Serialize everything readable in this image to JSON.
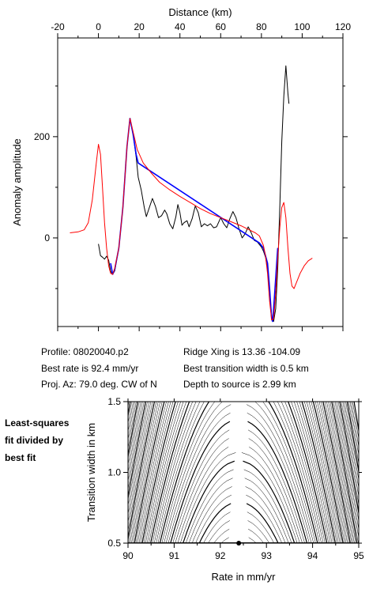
{
  "chart_data": [
    {
      "type": "line",
      "xlabel": "Distance (km)",
      "ylabel": "Anomaly amplitude",
      "xlim": [
        -20,
        120
      ],
      "ylim": [
        -175,
        395
      ],
      "xticks": [
        -20,
        0,
        20,
        40,
        60,
        80,
        100,
        120
      ],
      "yticks": [
        0,
        200
      ],
      "series": [
        {
          "color": "#000000",
          "points": [
            [
              0,
              -12
            ],
            [
              1,
              -35
            ],
            [
              2,
              -38
            ],
            [
              3,
              -42
            ],
            [
              4,
              -36
            ],
            [
              5,
              -44
            ],
            [
              6,
              -66
            ],
            [
              7,
              -72
            ],
            [
              8,
              -65
            ],
            [
              10,
              -20
            ],
            [
              12,
              60
            ],
            [
              14,
              180
            ],
            [
              15.5,
              236
            ],
            [
              17,
              205
            ],
            [
              18.5,
              160
            ],
            [
              19.5,
              120
            ],
            [
              21,
              95
            ],
            [
              22.5,
              60
            ],
            [
              23.5,
              42
            ],
            [
              25,
              60
            ],
            [
              26.5,
              78
            ],
            [
              28,
              62
            ],
            [
              29.5,
              40
            ],
            [
              31,
              44
            ],
            [
              32.5,
              55
            ],
            [
              33.5,
              48
            ],
            [
              35,
              28
            ],
            [
              36.5,
              18
            ],
            [
              38,
              42
            ],
            [
              39,
              66
            ],
            [
              40,
              50
            ],
            [
              41,
              25
            ],
            [
              42,
              30
            ],
            [
              43.5,
              34
            ],
            [
              44.5,
              22
            ],
            [
              46,
              38
            ],
            [
              47.5,
              63
            ],
            [
              49,
              50
            ],
            [
              50.5,
              22
            ],
            [
              52,
              28
            ],
            [
              53.5,
              24
            ],
            [
              55,
              28
            ],
            [
              56.5,
              20
            ],
            [
              58,
              22
            ],
            [
              60,
              40
            ],
            [
              61.5,
              28
            ],
            [
              63,
              20
            ],
            [
              64.5,
              38
            ],
            [
              66,
              52
            ],
            [
              67.5,
              40
            ],
            [
              69,
              18
            ],
            [
              70.5,
              0
            ],
            [
              72,
              8
            ],
            [
              73.5,
              22
            ],
            [
              75,
              10
            ],
            [
              76.5,
              -5
            ],
            [
              78,
              -8
            ],
            [
              80,
              -18
            ],
            [
              81,
              -26
            ],
            [
              82,
              -38
            ],
            [
              83,
              -62
            ],
            [
              84,
              -104
            ],
            [
              85,
              -155
            ],
            [
              86,
              -165
            ],
            [
              87,
              -140
            ],
            [
              88,
              -60
            ],
            [
              89,
              60
            ],
            [
              90,
              190
            ],
            [
              91,
              280
            ],
            [
              92,
              340
            ],
            [
              93,
              285
            ],
            [
              93.5,
              265
            ]
          ]
        },
        {
          "color": "#0000ff",
          "points": [
            [
              6,
              -50
            ],
            [
              7,
              -72
            ],
            [
              8,
              -62
            ],
            [
              10,
              -20
            ],
            [
              12,
              60
            ],
            [
              14,
              180
            ],
            [
              15.5,
              236
            ],
            [
              17,
              205
            ],
            [
              18.5,
              165
            ],
            [
              19.5,
              148
            ],
            [
              79,
              -10
            ],
            [
              81,
              -20
            ],
            [
              83,
              -50
            ],
            [
              84,
              -100
            ],
            [
              85,
              -160
            ],
            [
              85.5,
              -165
            ],
            [
              86,
              -140
            ],
            [
              87,
              -80
            ],
            [
              88,
              -20
            ]
          ]
        },
        {
          "color": "#ff0000",
          "points": [
            [
              -14,
              10
            ],
            [
              -10,
              12
            ],
            [
              -7,
              16
            ],
            [
              -5,
              30
            ],
            [
              -3,
              75
            ],
            [
              -1,
              150
            ],
            [
              0,
              185
            ],
            [
              1,
              165
            ],
            [
              2,
              100
            ],
            [
              3,
              30
            ],
            [
              4,
              -20
            ],
            [
              5,
              -55
            ],
            [
              6,
              -70
            ],
            [
              7,
              -72
            ],
            [
              8,
              -60
            ],
            [
              10,
              -20
            ],
            [
              12,
              60
            ],
            [
              14,
              180
            ],
            [
              15.5,
              236
            ],
            [
              17,
              210
            ],
            [
              19,
              175
            ],
            [
              22,
              148
            ],
            [
              26,
              128
            ],
            [
              30,
              110
            ],
            [
              35,
              95
            ],
            [
              40,
              82
            ],
            [
              45,
              70
            ],
            [
              50,
              58
            ],
            [
              55,
              48
            ],
            [
              60,
              40
            ],
            [
              65,
              32
            ],
            [
              70,
              24
            ],
            [
              74,
              16
            ],
            [
              77,
              10
            ],
            [
              79,
              4
            ],
            [
              81,
              -15
            ],
            [
              82,
              -35
            ],
            [
              83,
              -70
            ],
            [
              84,
              -125
            ],
            [
              85,
              -162
            ],
            [
              86,
              -160
            ],
            [
              87,
              -110
            ],
            [
              88,
              -40
            ],
            [
              89,
              20
            ],
            [
              90,
              60
            ],
            [
              91,
              70
            ],
            [
              92,
              40
            ],
            [
              93,
              -20
            ],
            [
              94,
              -70
            ],
            [
              95,
              -95
            ],
            [
              96,
              -100
            ],
            [
              97,
              -90
            ],
            [
              99,
              -70
            ],
            [
              101,
              -55
            ],
            [
              103,
              -45
            ],
            [
              105,
              -40
            ]
          ]
        }
      ]
    },
    {
      "type": "contour",
      "xlabel": "Rate in mm/yr",
      "ylabel": "Transition width in km",
      "xlim": [
        90,
        95
      ],
      "ylim": [
        0.5,
        1.5
      ],
      "xticks": [
        90,
        91,
        92,
        93,
        94,
        95
      ],
      "yticks": [
        0.5,
        1.0,
        1.5
      ],
      "best_fit_point": {
        "rate": 92.4,
        "width": 0.5
      }
    }
  ],
  "info": {
    "profile": "Profile: 08020040.p2",
    "rate": "Best rate is 92.4 mm/yr",
    "azimuth": "Proj. Az: 79.0 deg. CW of N",
    "ridge": "Ridge Xing is 13.36 -104.09",
    "width": "Best transition width is 0.5 km",
    "depth": "Depth to source is   2.99 km"
  },
  "side_label": [
    "Least-squares",
    "fit divided by",
    "best fit"
  ]
}
